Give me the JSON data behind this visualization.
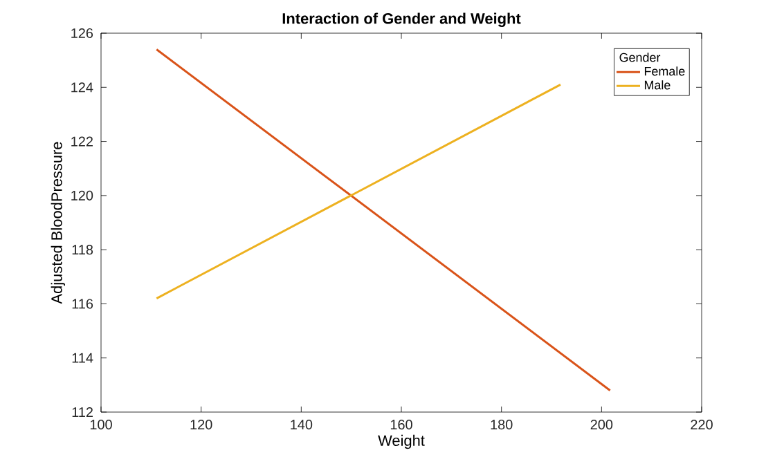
{
  "chart_data": {
    "type": "line",
    "title": "Interaction of Gender and Weight",
    "xlabel": "Weight",
    "ylabel": "Adjusted BloodPressure",
    "legend_title": "Gender",
    "legend": "top right",
    "xlim": [
      100,
      220
    ],
    "ylim": [
      112,
      126
    ],
    "xticks": [
      100,
      120,
      140,
      160,
      180,
      200,
      220
    ],
    "yticks": [
      112,
      114,
      116,
      118,
      120,
      122,
      124,
      126
    ],
    "series": [
      {
        "name": "Female",
        "color": "#d95319",
        "x": [
          111.1,
          201.7
        ],
        "values": [
          125.4,
          112.8
        ]
      },
      {
        "name": "Male",
        "color": "#edb120",
        "x": [
          111.1,
          191.8
        ],
        "values": [
          116.2,
          124.1
        ]
      }
    ]
  }
}
